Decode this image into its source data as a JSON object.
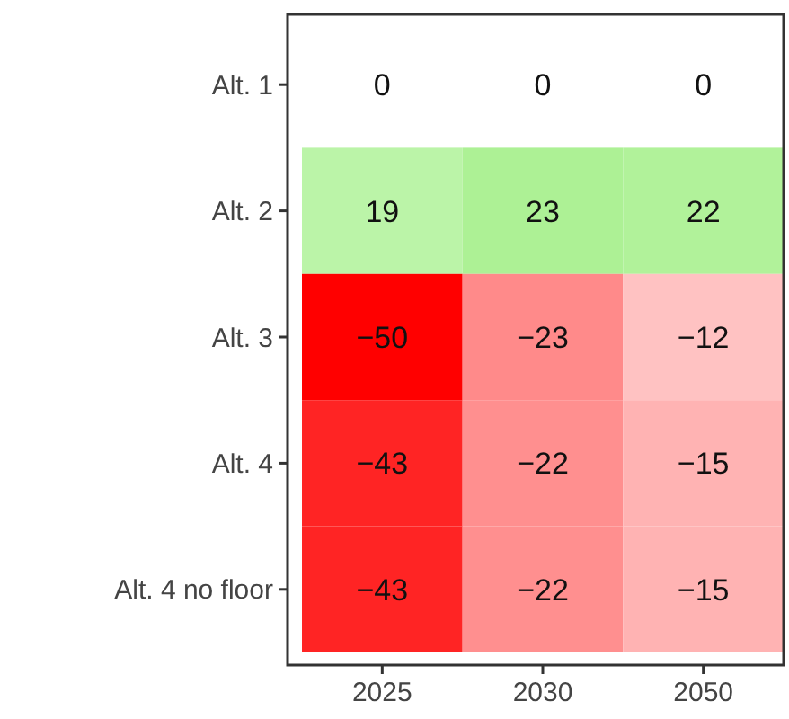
{
  "chart_data": {
    "type": "heatmap",
    "categories": [
      "2025",
      "2030",
      "2050"
    ],
    "y_categories": [
      "Alt. 1",
      "Alt. 2",
      "Alt. 3",
      "Alt. 4",
      "Alt. 4 no floor"
    ],
    "cells": [
      [
        0,
        0,
        0
      ],
      [
        19,
        23,
        22
      ],
      [
        -50,
        -23,
        -12
      ],
      [
        -43,
        -22,
        -15
      ],
      [
        -43,
        -22,
        -15
      ]
    ],
    "cell_labels": [
      [
        "0",
        "0",
        "0"
      ],
      [
        "19",
        "23",
        "22"
      ],
      [
        "−50",
        "−23",
        "−12"
      ],
      [
        "−43",
        "−22",
        "−15"
      ],
      [
        "−43",
        "−22",
        "−15"
      ]
    ]
  }
}
